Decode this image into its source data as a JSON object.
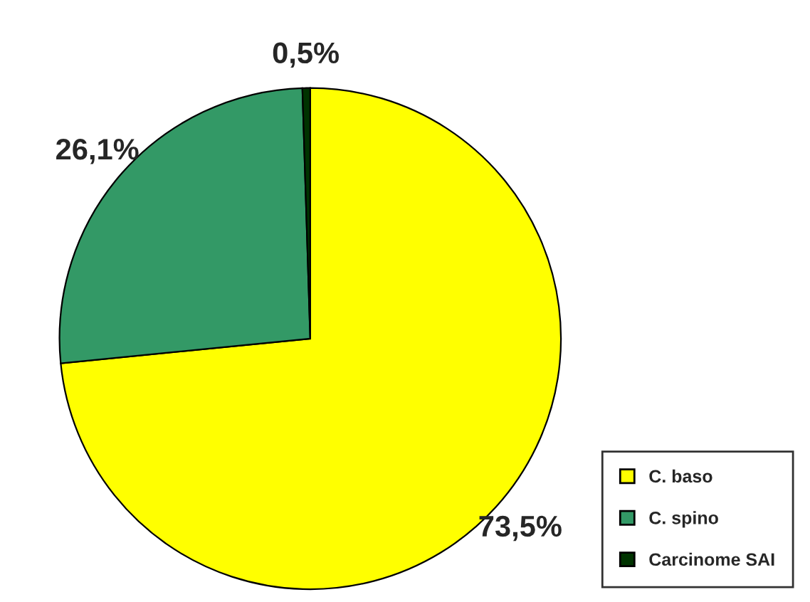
{
  "chart_data": {
    "type": "pie",
    "categories": [
      "C. baso",
      "C. spino",
      "Carcinome SAI"
    ],
    "values": [
      73.5,
      26.1,
      0.5
    ],
    "value_labels": [
      "73,5%",
      "26,1%",
      "0,5%"
    ],
    "colors": [
      "#ffff00",
      "#339966",
      "#003300"
    ],
    "legend": "bottom right"
  }
}
